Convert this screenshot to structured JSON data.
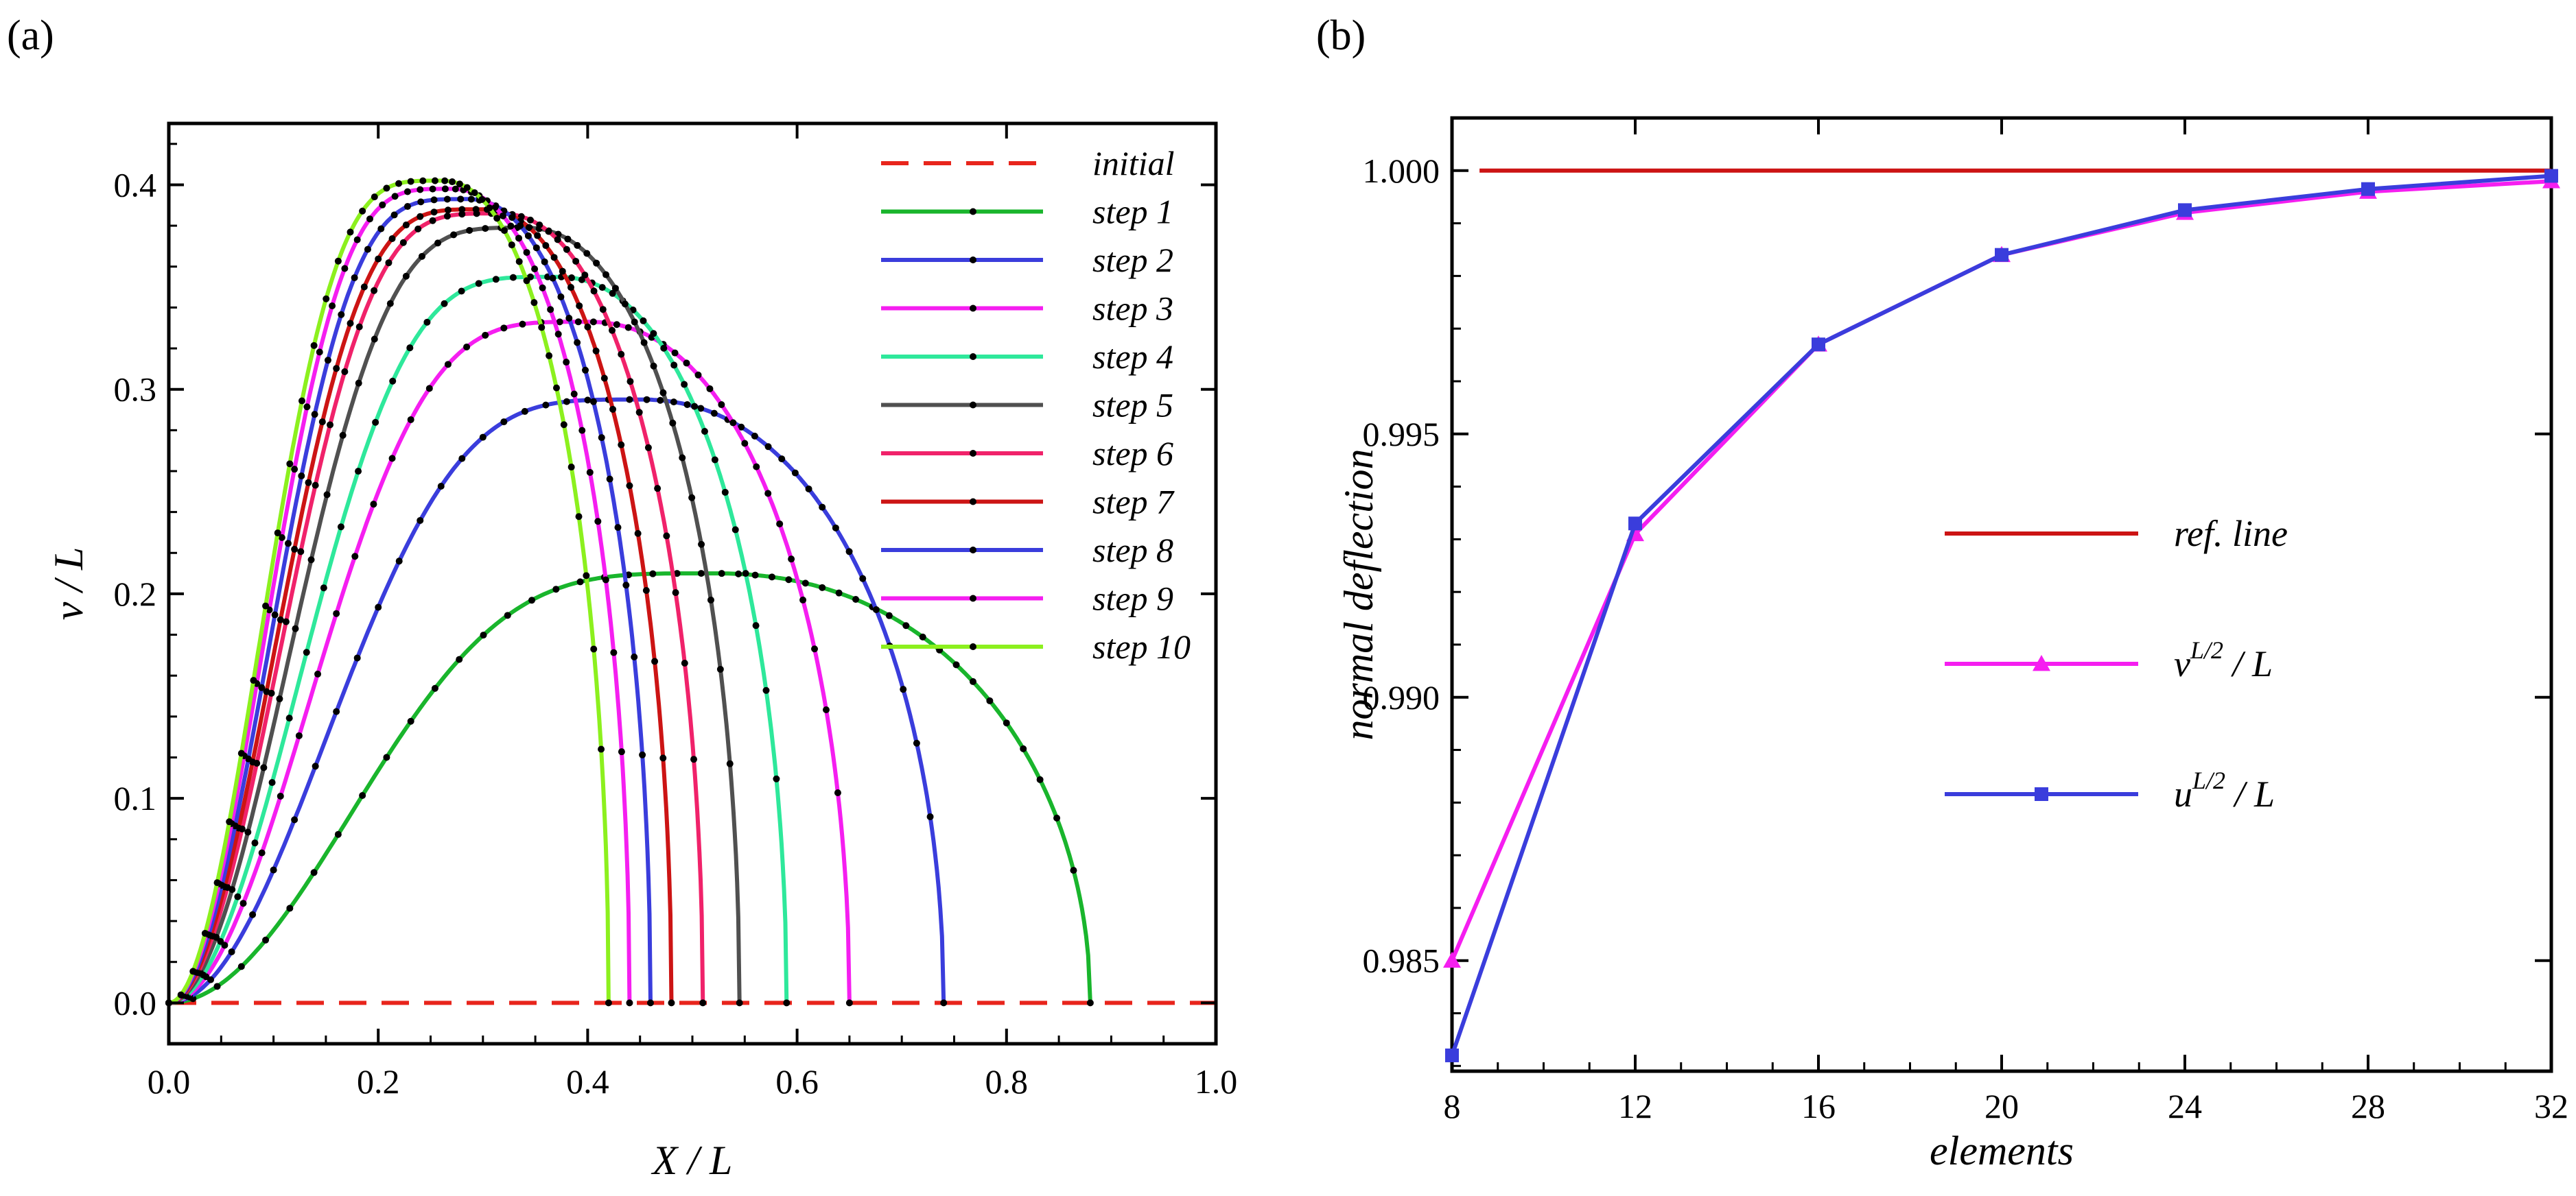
{
  "chart_data": [
    {
      "type": "line",
      "panel_label": "(a)",
      "xlabel": "X / L",
      "ylabel": "v / L",
      "xlim": [
        0,
        1
      ],
      "ylim": [
        -0.02,
        0.43
      ],
      "xticks": [
        "0.0",
        "0.2",
        "0.4",
        "0.6",
        "0.8",
        "1.0"
      ],
      "yticks": [
        "0.0",
        "0.1",
        "0.2",
        "0.3",
        "0.4"
      ],
      "legend_position": "top-right",
      "series": [
        {
          "name": "initial",
          "color": "#e8251c",
          "dashed": true,
          "peak_x": 0.5,
          "peak_y": 0.0,
          "end_x": 1.0
        },
        {
          "name": "step 1",
          "color": "#19b52c",
          "peak_x": 0.52,
          "peak_y": 0.21,
          "end_x": 0.88
        },
        {
          "name": "step 2",
          "color": "#3a3ddc",
          "peak_x": 0.45,
          "peak_y": 0.295,
          "end_x": 0.74
        },
        {
          "name": "step 3",
          "color": "#f51ef0",
          "peak_x": 0.4,
          "peak_y": 0.333,
          "end_x": 0.65
        },
        {
          "name": "step 4",
          "color": "#2ee89b",
          "peak_x": 0.37,
          "peak_y": 0.355,
          "end_x": 0.59
        },
        {
          "name": "step 5",
          "color": "#505050",
          "peak_x": 0.34,
          "peak_y": 0.379,
          "end_x": 0.545
        },
        {
          "name": "step 6",
          "color": "#f0226a",
          "peak_x": 0.315,
          "peak_y": 0.386,
          "end_x": 0.51
        },
        {
          "name": "step 7",
          "color": "#cc1414",
          "peak_x": 0.3,
          "peak_y": 0.388,
          "end_x": 0.48
        },
        {
          "name": "step 8",
          "color": "#3a3ddc",
          "peak_x": 0.285,
          "peak_y": 0.393,
          "end_x": 0.46
        },
        {
          "name": "step 9",
          "color": "#f51ef0",
          "peak_x": 0.27,
          "peak_y": 0.398,
          "end_x": 0.44
        },
        {
          "name": "step 10",
          "color": "#8cf01e",
          "peak_x": 0.26,
          "peak_y": 0.402,
          "end_x": 0.42
        }
      ]
    },
    {
      "type": "line",
      "panel_label": "(b)",
      "xlabel": "elements",
      "ylabel": "normal deflection",
      "xlim": [
        8,
        32
      ],
      "ylim": [
        0.9829,
        1.001
      ],
      "xticks": [
        "8",
        "12",
        "16",
        "20",
        "24",
        "28",
        "32"
      ],
      "yticks": [
        "0.985",
        "0.990",
        "0.995",
        "1.000"
      ],
      "categories": [
        8,
        12,
        16,
        20,
        24,
        28,
        32
      ],
      "legend_position": "center",
      "series": [
        {
          "name": "ref. line",
          "color": "#cc1414",
          "marker": "none",
          "values": [
            1.0,
            1.0,
            1.0,
            1.0,
            1.0,
            1.0,
            1.0
          ]
        },
        {
          "name": "v^{L/2} / L",
          "label_base": "v",
          "label_sup": "L/2",
          "label_tail": " / L",
          "color": "#f51ef0",
          "marker": "triangle",
          "values": [
            0.985,
            0.9931,
            0.9967,
            0.9984,
            0.9992,
            0.9996,
            0.9998
          ]
        },
        {
          "name": "u^{L/2} / L",
          "label_base": "u",
          "label_sup": "L/2",
          "label_tail": " / L",
          "color": "#3a3ddc",
          "marker": "square",
          "values": [
            0.9832,
            0.9933,
            0.9967,
            0.9984,
            0.99925,
            0.99965,
            0.9999
          ]
        }
      ]
    }
  ]
}
